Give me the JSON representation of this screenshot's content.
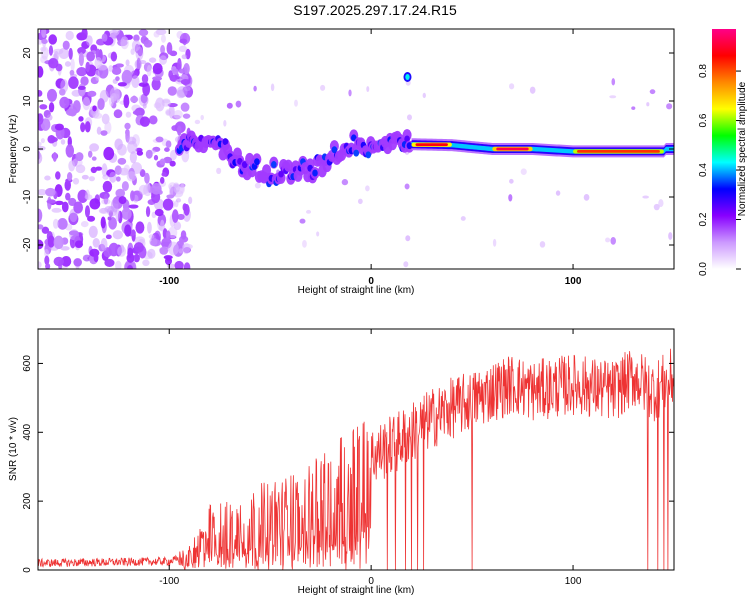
{
  "title": "S197.2025.297.17.24.R15",
  "chart_data": [
    {
      "type": "heatmap",
      "name": "spectrogram",
      "xlabel": "Height of straight line (km)",
      "ylabel": "Frequency (Hz)",
      "xlim": [
        -165,
        150
      ],
      "ylim": [
        -25,
        25
      ],
      "xticks": [
        -100,
        0,
        100
      ],
      "yticks": [
        -20,
        -10,
        0,
        10,
        20
      ],
      "colorbar": {
        "label": "Normalized spectral amplitude",
        "ticks": [
          "0.0",
          "0.2",
          "0.4",
          "0.6",
          "0.8"
        ],
        "tick_values": [
          0,
          0.2,
          0.4,
          0.6,
          0.8
        ],
        "range": [
          0,
          0.97
        ],
        "colors": [
          "#ffffff",
          "#cc99ff",
          "#8800ff",
          "#0000ff",
          "#00ffff",
          "#00ff00",
          "#ffff00",
          "#ff8800",
          "#ff0000",
          "#ff0088"
        ]
      },
      "ridge": {
        "description_points": [
          [
            -95,
            0.5
          ],
          [
            -80,
            1.5
          ],
          [
            -65,
            -3
          ],
          [
            -55,
            -4
          ],
          [
            -40,
            -5
          ],
          [
            -25,
            -4
          ],
          [
            -15,
            0
          ],
          [
            -10,
            1.5
          ],
          [
            0,
            1
          ],
          [
            10,
            1.5
          ],
          [
            20,
            1
          ],
          [
            40,
            0.8
          ],
          [
            60,
            0
          ],
          [
            80,
            0
          ],
          [
            100,
            -0.5
          ],
          [
            120,
            -0.5
          ],
          [
            145,
            -0.5
          ]
        ],
        "peak_segments": [
          [
            20,
            40,
            0.9
          ],
          [
            60,
            80,
            0.95
          ],
          [
            100,
            145,
            0.85
          ]
        ]
      },
      "noise_region_x": [
        -165,
        -95
      ],
      "artifact_x": 18
    },
    {
      "type": "line",
      "name": "snr",
      "xlabel": "Height of straight line (km)",
      "ylabel": "SNR (10 * v/v)",
      "xlim": [
        -165,
        150
      ],
      "ylim": [
        0,
        700
      ],
      "xticks": [
        -100,
        0,
        100
      ],
      "yticks": [
        0,
        200,
        400,
        600
      ],
      "series_color": "#ee3333",
      "trend_x": [
        -165,
        -100,
        -90,
        -80,
        -60,
        -40,
        -20,
        -10,
        0,
        10,
        20,
        30,
        40,
        50,
        60,
        70,
        80,
        90,
        100,
        110,
        120,
        130,
        140,
        150
      ],
      "trend_y": [
        20,
        25,
        40,
        110,
        140,
        160,
        200,
        260,
        330,
        360,
        400,
        440,
        470,
        490,
        520,
        540,
        520,
        530,
        540,
        530,
        520,
        560,
        520,
        560
      ],
      "dropouts_x": [
        8,
        12,
        17,
        20,
        23,
        26,
        50,
        137,
        142,
        145,
        147
      ]
    }
  ]
}
